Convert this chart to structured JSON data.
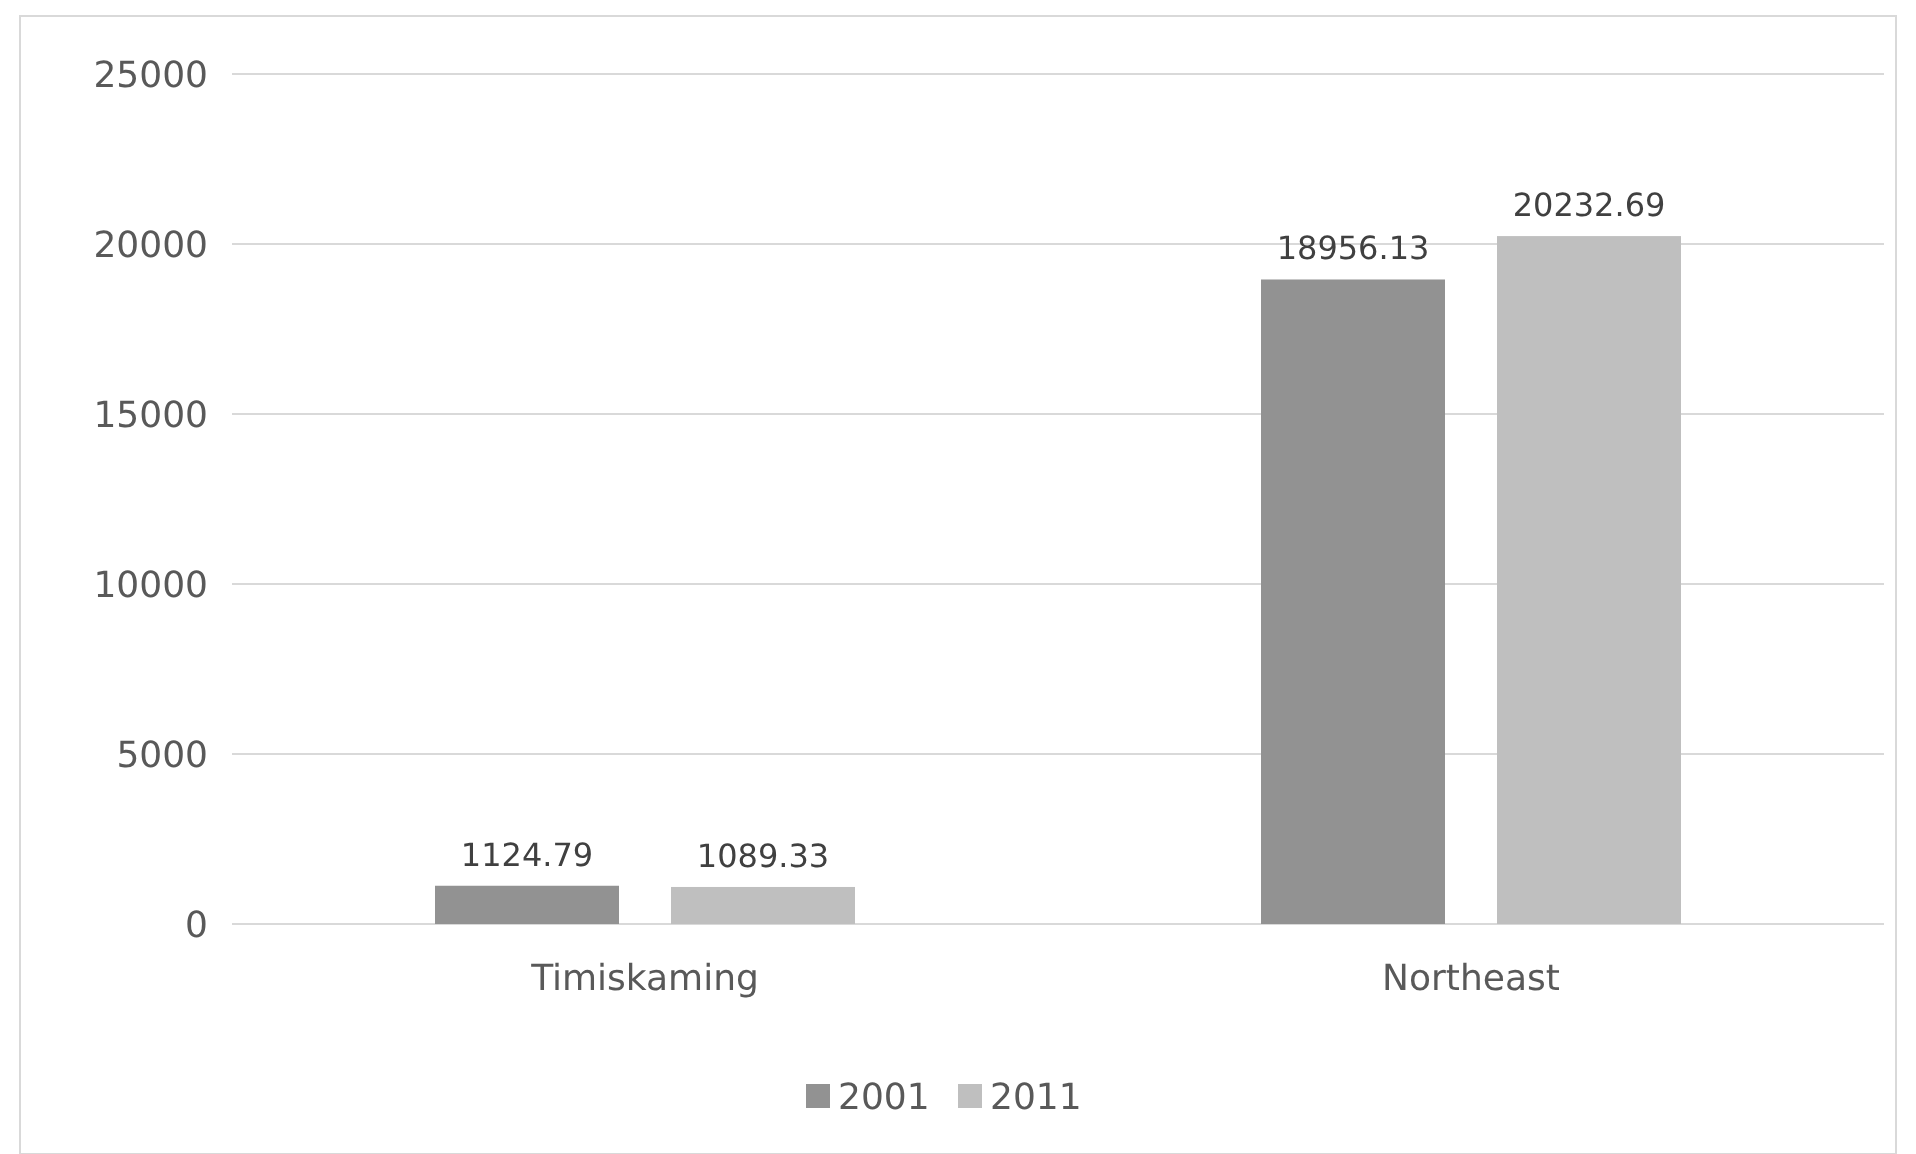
{
  "chart_data": {
    "type": "bar",
    "categories": [
      "Timiskaming",
      "Northeast"
    ],
    "series": [
      {
        "name": "2001",
        "color": "#929292",
        "values": [
          1124.79,
          18956.13
        ]
      },
      {
        "name": "2011",
        "color": "#bfbfbf",
        "values": [
          1089.33,
          20232.69
        ]
      }
    ],
    "ylim": [
      0,
      25000
    ],
    "yticks": [
      0,
      5000,
      10000,
      15000,
      20000,
      25000
    ],
    "grid": "y",
    "legend": "bottom",
    "data_labels": true
  }
}
